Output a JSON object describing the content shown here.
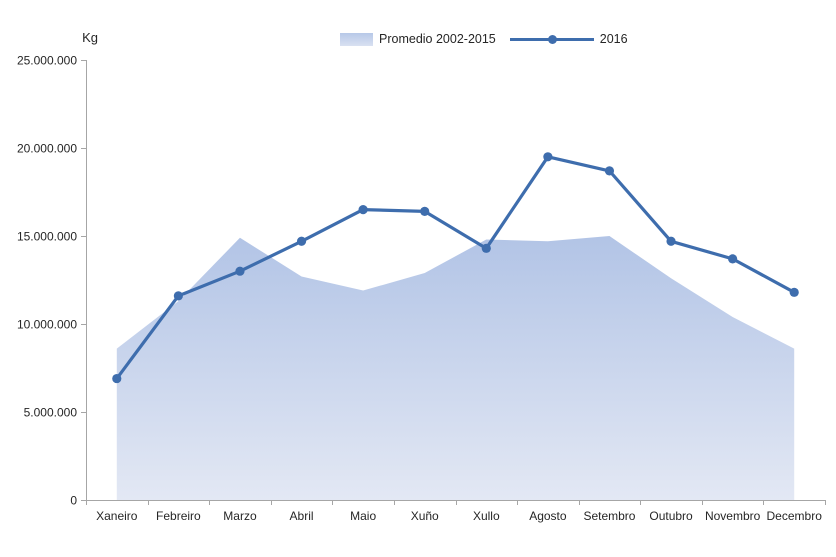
{
  "chart_data": {
    "type": "area+line combo",
    "title": "",
    "xlabel": "",
    "ylabel": "Kg",
    "ylim": [
      0,
      25000000
    ],
    "grid": false,
    "legend_position": "top-center",
    "axis_color": "#a6a6a6",
    "text_color": "#262626",
    "categories": [
      "Xaneiro",
      "Febreiro",
      "Marzo",
      "Abril",
      "Maio",
      "Xuño",
      "Xullo",
      "Agosto",
      "Setembro",
      "Outubro",
      "Novembro",
      "Decembro"
    ],
    "y_ticks": [
      {
        "value": 0,
        "label": "0"
      },
      {
        "value": 5000000,
        "label": "5.000.000"
      },
      {
        "value": 10000000,
        "label": "10.000.000"
      },
      {
        "value": 15000000,
        "label": "15.000.000"
      },
      {
        "value": 20000000,
        "label": "20.000.000"
      },
      {
        "value": 25000000,
        "label": "25.000.000"
      }
    ],
    "series": [
      {
        "name": "Promedio 2002-2015",
        "type": "area",
        "fill_top": "#b2c4e6",
        "fill_bottom": "#e3e8f4",
        "values": [
          8600000,
          11300000,
          14900000,
          12700000,
          11900000,
          12900000,
          14800000,
          14700000,
          15000000,
          12600000,
          10400000,
          8600000
        ]
      },
      {
        "name": "2016",
        "type": "line",
        "color": "#3e6dad",
        "marker": "circle",
        "values": [
          6900000,
          11600000,
          13000000,
          14700000,
          16500000,
          16400000,
          14300000,
          19500000,
          18700000,
          14700000,
          13700000,
          11800000
        ]
      }
    ]
  }
}
